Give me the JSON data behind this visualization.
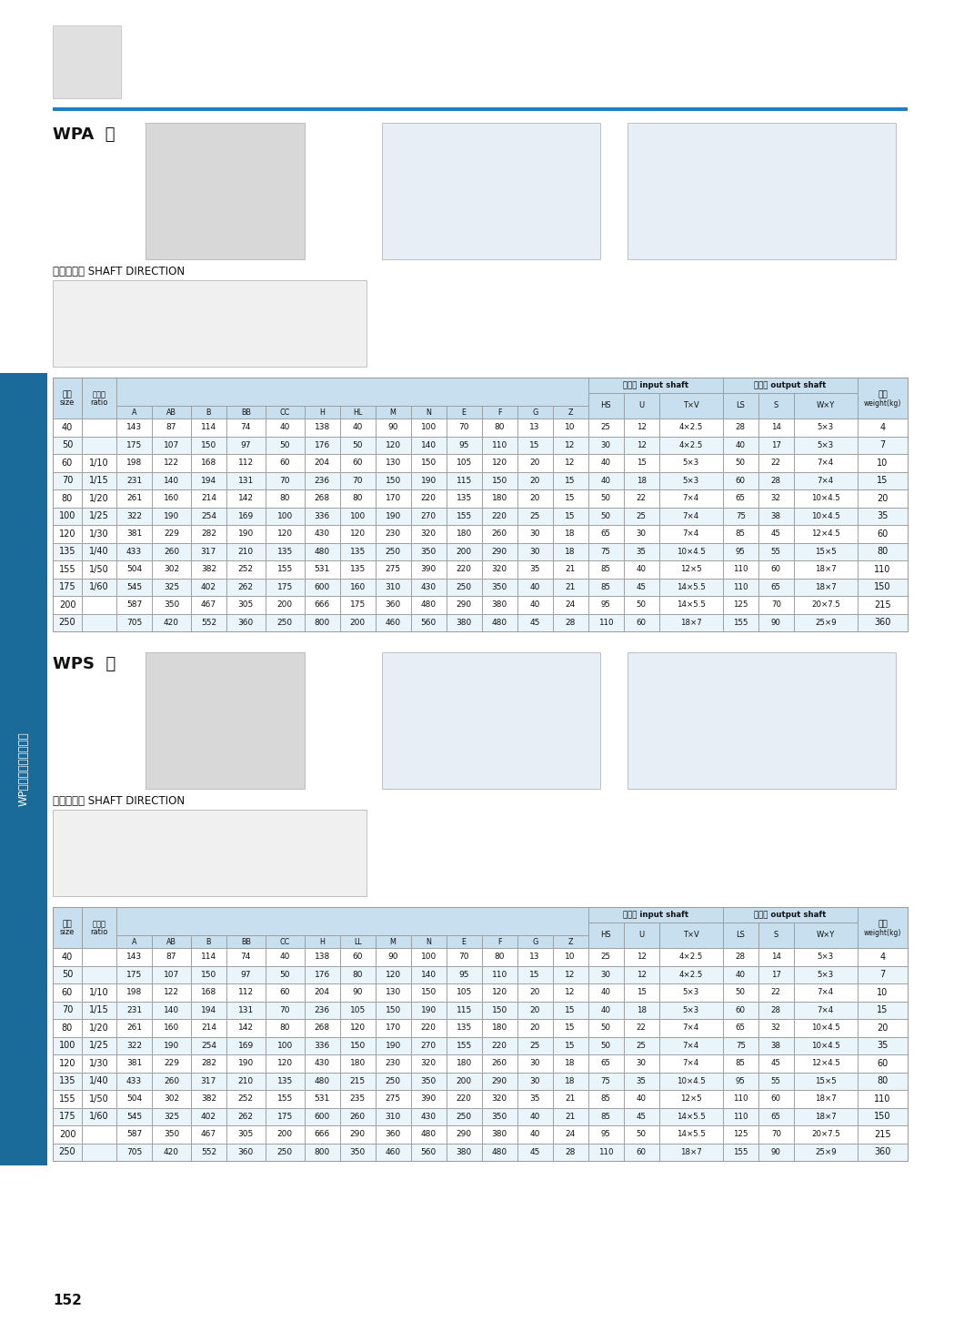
{
  "page_number": "152",
  "wpa_label": "WPA  型",
  "wps_label": "WPS  型",
  "shaft_direction_label": "轴指向表示 SHAFT DIRECTION",
  "wpa_data": [
    [
      "40",
      "",
      "143",
      "87",
      "114",
      "74",
      "40",
      "138",
      "40",
      "90",
      "100",
      "70",
      "80",
      "13",
      "10",
      "25",
      "12",
      "4×2.5",
      "28",
      "14",
      "5×3",
      "4"
    ],
    [
      "50",
      "",
      "175",
      "107",
      "150",
      "97",
      "50",
      "176",
      "50",
      "120",
      "140",
      "95",
      "110",
      "15",
      "12",
      "30",
      "12",
      "4×2.5",
      "40",
      "17",
      "5×3",
      "7"
    ],
    [
      "60",
      "1/10",
      "198",
      "122",
      "168",
      "112",
      "60",
      "204",
      "60",
      "130",
      "150",
      "105",
      "120",
      "20",
      "12",
      "40",
      "15",
      "5×3",
      "50",
      "22",
      "7×4",
      "10"
    ],
    [
      "70",
      "1/15",
      "231",
      "140",
      "194",
      "131",
      "70",
      "236",
      "70",
      "150",
      "190",
      "115",
      "150",
      "20",
      "15",
      "40",
      "18",
      "5×3",
      "60",
      "28",
      "7×4",
      "15"
    ],
    [
      "80",
      "1/20",
      "261",
      "160",
      "214",
      "142",
      "80",
      "268",
      "80",
      "170",
      "220",
      "135",
      "180",
      "20",
      "15",
      "50",
      "22",
      "7×4",
      "65",
      "32",
      "10×4.5",
      "20"
    ],
    [
      "100",
      "1/25",
      "322",
      "190",
      "254",
      "169",
      "100",
      "336",
      "100",
      "190",
      "270",
      "155",
      "220",
      "25",
      "15",
      "50",
      "25",
      "7×4",
      "75",
      "38",
      "10×4.5",
      "35"
    ],
    [
      "120",
      "1/30",
      "381",
      "229",
      "282",
      "190",
      "120",
      "430",
      "120",
      "230",
      "320",
      "180",
      "260",
      "30",
      "18",
      "65",
      "30",
      "7×4",
      "85",
      "45",
      "12×4.5",
      "60"
    ],
    [
      "135",
      "1/40",
      "433",
      "260",
      "317",
      "210",
      "135",
      "480",
      "135",
      "250",
      "350",
      "200",
      "290",
      "30",
      "18",
      "75",
      "35",
      "10×4.5",
      "95",
      "55",
      "15×5",
      "80"
    ],
    [
      "155",
      "1/50",
      "504",
      "302",
      "382",
      "252",
      "155",
      "531",
      "135",
      "275",
      "390",
      "220",
      "320",
      "35",
      "21",
      "85",
      "40",
      "12×5",
      "110",
      "60",
      "18×7",
      "110"
    ],
    [
      "175",
      "1/60",
      "545",
      "325",
      "402",
      "262",
      "175",
      "600",
      "160",
      "310",
      "430",
      "250",
      "350",
      "40",
      "21",
      "85",
      "45",
      "14×5.5",
      "110",
      "65",
      "18×7",
      "150"
    ],
    [
      "200",
      "",
      "587",
      "350",
      "467",
      "305",
      "200",
      "666",
      "175",
      "360",
      "480",
      "290",
      "380",
      "40",
      "24",
      "95",
      "50",
      "14×5.5",
      "125",
      "70",
      "20×7.5",
      "215"
    ],
    [
      "250",
      "",
      "705",
      "420",
      "552",
      "360",
      "250",
      "800",
      "200",
      "460",
      "560",
      "380",
      "480",
      "45",
      "28",
      "110",
      "60",
      "18×7",
      "155",
      "90",
      "25×9",
      "360"
    ]
  ],
  "wps_data": [
    [
      "40",
      "",
      "143",
      "87",
      "114",
      "74",
      "40",
      "138",
      "60",
      "90",
      "100",
      "70",
      "80",
      "13",
      "10",
      "25",
      "12",
      "4×2.5",
      "28",
      "14",
      "5×3",
      "4"
    ],
    [
      "50",
      "",
      "175",
      "107",
      "150",
      "97",
      "50",
      "176",
      "80",
      "120",
      "140",
      "95",
      "110",
      "15",
      "12",
      "30",
      "12",
      "4×2.5",
      "40",
      "17",
      "5×3",
      "7"
    ],
    [
      "60",
      "1/10",
      "198",
      "122",
      "168",
      "112",
      "60",
      "204",
      "90",
      "130",
      "150",
      "105",
      "120",
      "20",
      "12",
      "40",
      "15",
      "5×3",
      "50",
      "22",
      "7×4",
      "10"
    ],
    [
      "70",
      "1/15",
      "231",
      "140",
      "194",
      "131",
      "70",
      "236",
      "105",
      "150",
      "190",
      "115",
      "150",
      "20",
      "15",
      "40",
      "18",
      "5×3",
      "60",
      "28",
      "7×4",
      "15"
    ],
    [
      "80",
      "1/20",
      "261",
      "160",
      "214",
      "142",
      "80",
      "268",
      "120",
      "170",
      "220",
      "135",
      "180",
      "20",
      "15",
      "50",
      "22",
      "7×4",
      "65",
      "32",
      "10×4.5",
      "20"
    ],
    [
      "100",
      "1/25",
      "322",
      "190",
      "254",
      "169",
      "100",
      "336",
      "150",
      "190",
      "270",
      "155",
      "220",
      "25",
      "15",
      "50",
      "25",
      "7×4",
      "75",
      "38",
      "10×4.5",
      "35"
    ],
    [
      "120",
      "1/30",
      "381",
      "229",
      "282",
      "190",
      "120",
      "430",
      "180",
      "230",
      "320",
      "180",
      "260",
      "30",
      "18",
      "65",
      "30",
      "7×4",
      "85",
      "45",
      "12×4.5",
      "60"
    ],
    [
      "135",
      "1/40",
      "433",
      "260",
      "317",
      "210",
      "135",
      "480",
      "215",
      "250",
      "350",
      "200",
      "290",
      "30",
      "18",
      "75",
      "35",
      "10×4.5",
      "95",
      "55",
      "15×5",
      "80"
    ],
    [
      "155",
      "1/50",
      "504",
      "302",
      "382",
      "252",
      "155",
      "531",
      "235",
      "275",
      "390",
      "220",
      "320",
      "35",
      "21",
      "85",
      "40",
      "12×5",
      "110",
      "60",
      "18×7",
      "110"
    ],
    [
      "175",
      "1/60",
      "545",
      "325",
      "402",
      "262",
      "175",
      "600",
      "260",
      "310",
      "430",
      "250",
      "350",
      "40",
      "21",
      "85",
      "45",
      "14×5.5",
      "110",
      "65",
      "18×7",
      "150"
    ],
    [
      "200",
      "",
      "587",
      "350",
      "467",
      "305",
      "200",
      "666",
      "290",
      "360",
      "480",
      "290",
      "380",
      "40",
      "24",
      "95",
      "50",
      "14×5.5",
      "125",
      "70",
      "20×7.5",
      "215"
    ],
    [
      "250",
      "",
      "705",
      "420",
      "552",
      "360",
      "250",
      "800",
      "350",
      "460",
      "560",
      "380",
      "480",
      "45",
      "28",
      "110",
      "60",
      "18×7",
      "155",
      "90",
      "25×9",
      "360"
    ]
  ],
  "header_color": "#c8dff0",
  "border_color": "#999999",
  "blue_line_color": "#2080c0",
  "side_bar_color": "#1a6b9a",
  "text_color": "#111111",
  "bg_even": "#ffffff",
  "bg_odd": "#eaf4fb"
}
